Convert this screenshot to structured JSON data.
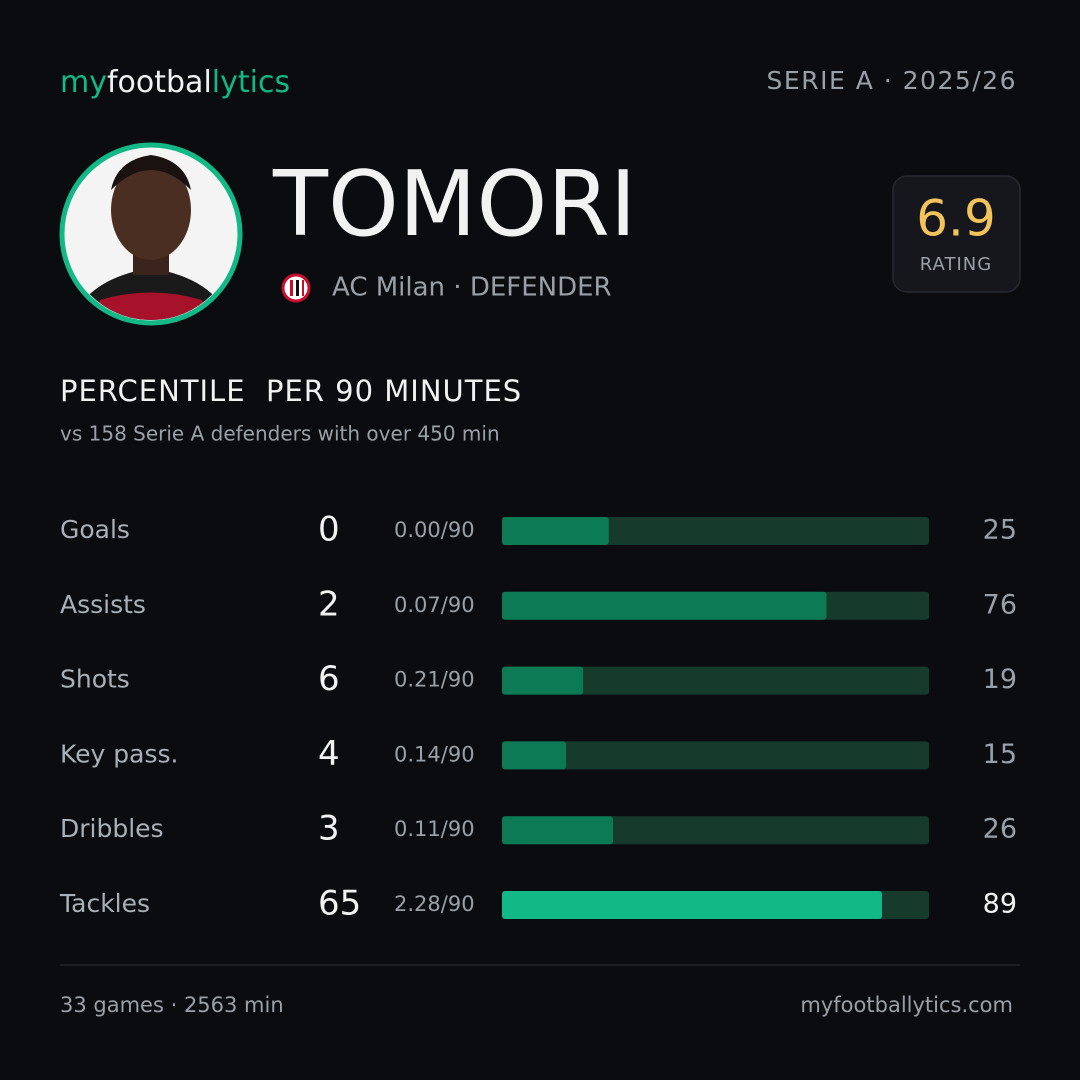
{
  "header": {
    "brand": [
      "my",
      "footbal",
      "lytics"
    ],
    "league": "SERIE A · 2025/26"
  },
  "player": {
    "name": "TOMORI",
    "club": "AC Milan · DEFENDER",
    "rating": 6.9,
    "rating_label": "RATING"
  },
  "section": {
    "title": "PERCENTILE  PER 90 MINUTES",
    "subtitle": "vs 158 Serie A defenders with over 450 min"
  },
  "stats": {
    "xlim": [
      0,
      100
    ],
    "rows": [
      {
        "label": "Goals",
        "total": 0,
        "per90": "0.00/90",
        "percentile": 25,
        "color": "#0b7a55"
      },
      {
        "label": "Assists",
        "total": 2,
        "per90": "0.07/90",
        "percentile": 76,
        "color": "#0b7a55"
      },
      {
        "label": "Shots",
        "total": 6,
        "per90": "0.21/90",
        "percentile": 19,
        "color": "#0b7a55"
      },
      {
        "label": "Key pass.",
        "total": 4,
        "per90": "0.14/90",
        "percentile": 15,
        "color": "#0b7a55"
      },
      {
        "label": "Dribbles",
        "total": 3,
        "per90": "0.11/90",
        "percentile": 26,
        "color": "#0b7a55"
      },
      {
        "label": "Tackles",
        "total": 65,
        "per90": "2.28/90",
        "percentile": 89,
        "color": "#12b886"
      }
    ]
  },
  "footer": {
    "left": "33 games · 2563 min",
    "right": "myfootballytics.com"
  }
}
